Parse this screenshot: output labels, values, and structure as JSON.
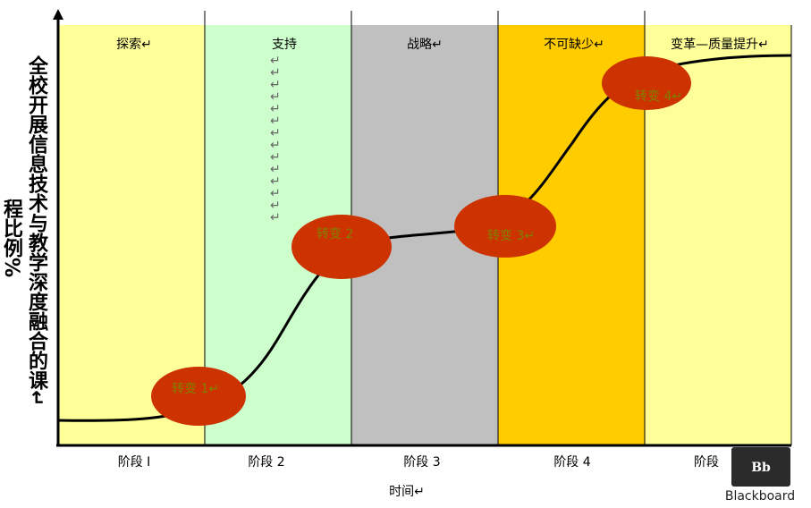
{
  "headers": [
    "探索↵",
    "支持",
    "战略↵",
    "不可缺少↵",
    "变革—质量提升↵"
  ],
  "support_marks": [
    "↵",
    "↵",
    "↵",
    "↵",
    "↵",
    "↵",
    "↵",
    "↵",
    "↵",
    "↵",
    "↵",
    "↵",
    "↵",
    "↵"
  ],
  "transitions": [
    "转变 1↵",
    "转变 2",
    "转变 3↵",
    "转变 4↵"
  ],
  "stages": [
    "阶段 I",
    "阶段 2",
    "阶段 3",
    "阶段 4",
    "阶段"
  ],
  "y_axis_label": {
    "main": "全校开展信息技术与教学深度融合的课↵",
    "side": "程比例%"
  },
  "x_axis_label": "时间↵",
  "logo": {
    "mark": "Bb",
    "name": "Blackboard"
  }
}
